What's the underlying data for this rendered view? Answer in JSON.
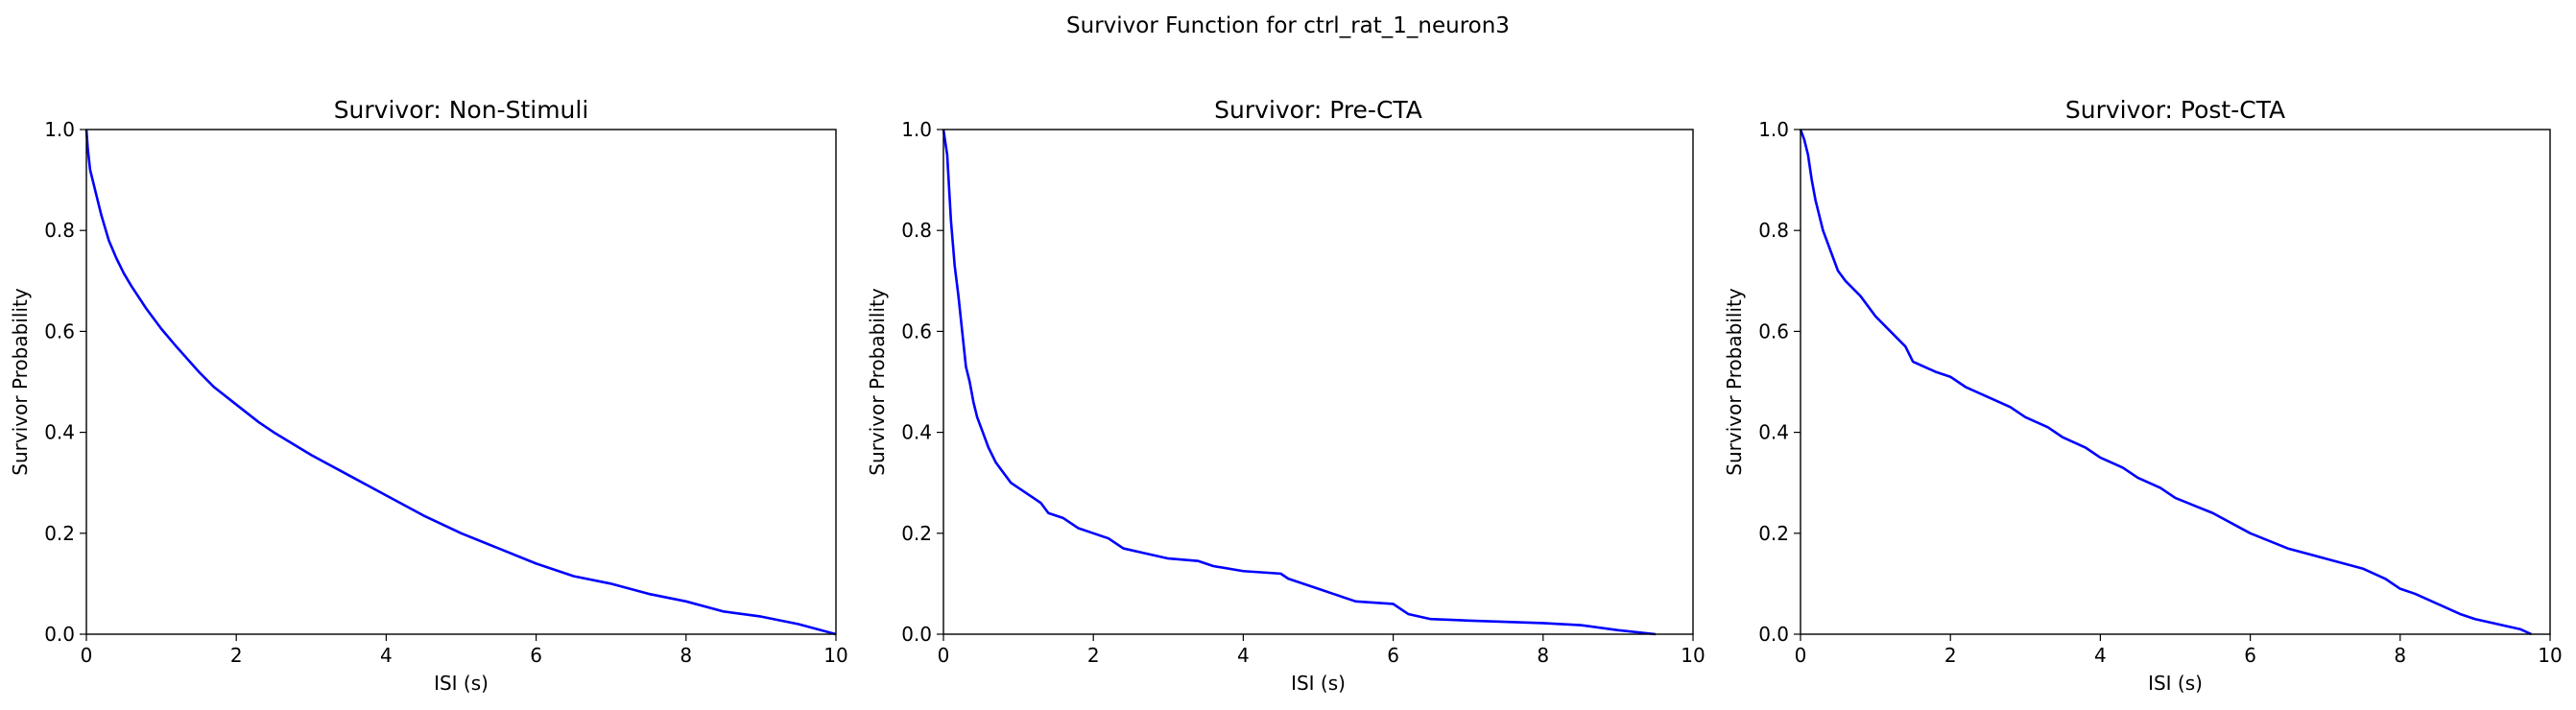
{
  "figure": {
    "suptitle": "Survivor Function for ctrl_rat_1_neuron3",
    "line_color": "#0000ff"
  },
  "chart_data": [
    {
      "type": "line",
      "title": "Survivor: Non-Stimuli",
      "xlabel": "ISI (s)",
      "ylabel": "Survivor Probability",
      "xlim": [
        0,
        10
      ],
      "ylim": [
        0,
        1
      ],
      "xticks": [
        0,
        2,
        4,
        6,
        8,
        10
      ],
      "yticks": [
        0.0,
        0.2,
        0.4,
        0.6,
        0.8,
        1.0
      ],
      "grid": false,
      "series": [
        {
          "x": [
            0,
            0.02,
            0.05,
            0.1,
            0.15,
            0.2,
            0.3,
            0.4,
            0.5,
            0.6,
            0.8,
            1.0,
            1.2,
            1.5,
            1.7,
            2.0,
            2.3,
            2.5,
            3.0,
            3.5,
            4.0,
            4.5,
            5.0,
            5.5,
            6.0,
            6.5,
            7.0,
            7.5,
            8.0,
            8.5,
            9.0,
            9.5,
            10.0
          ],
          "y": [
            1.0,
            0.96,
            0.92,
            0.89,
            0.86,
            0.83,
            0.78,
            0.745,
            0.715,
            0.69,
            0.645,
            0.605,
            0.57,
            0.52,
            0.49,
            0.455,
            0.42,
            0.4,
            0.355,
            0.315,
            0.275,
            0.235,
            0.2,
            0.17,
            0.14,
            0.115,
            0.1,
            0.08,
            0.065,
            0.045,
            0.035,
            0.02,
            0.0
          ]
        }
      ]
    },
    {
      "type": "line",
      "title": "Survivor: Pre-CTA",
      "xlabel": "ISI (s)",
      "ylabel": "Survivor Probability",
      "xlim": [
        0,
        10
      ],
      "ylim": [
        0,
        1
      ],
      "xticks": [
        0,
        2,
        4,
        6,
        8,
        10
      ],
      "yticks": [
        0.0,
        0.2,
        0.4,
        0.6,
        0.8,
        1.0
      ],
      "grid": false,
      "series": [
        {
          "x": [
            0,
            0.05,
            0.1,
            0.15,
            0.2,
            0.25,
            0.3,
            0.35,
            0.4,
            0.45,
            0.5,
            0.55,
            0.6,
            0.7,
            0.8,
            0.9,
            1.0,
            1.2,
            1.3,
            1.4,
            1.6,
            1.8,
            2.0,
            2.2,
            2.4,
            2.7,
            3.0,
            3.4,
            3.6,
            4.0,
            4.5,
            4.6,
            5.0,
            5.2,
            5.5,
            6.0,
            6.2,
            6.5,
            7.0,
            8.0,
            8.5,
            9.0,
            9.5
          ],
          "y": [
            1.0,
            0.95,
            0.82,
            0.73,
            0.67,
            0.6,
            0.53,
            0.5,
            0.46,
            0.43,
            0.41,
            0.39,
            0.37,
            0.34,
            0.32,
            0.3,
            0.29,
            0.27,
            0.26,
            0.24,
            0.23,
            0.21,
            0.2,
            0.19,
            0.17,
            0.16,
            0.15,
            0.145,
            0.135,
            0.125,
            0.12,
            0.11,
            0.09,
            0.08,
            0.065,
            0.06,
            0.04,
            0.03,
            0.027,
            0.022,
            0.018,
            0.008,
            0.0
          ]
        }
      ]
    },
    {
      "type": "line",
      "title": "Survivor: Post-CTA",
      "xlabel": "ISI (s)",
      "ylabel": "Survivor Probability",
      "xlim": [
        0,
        10
      ],
      "ylim": [
        0,
        1
      ],
      "xticks": [
        0,
        2,
        4,
        6,
        8,
        10
      ],
      "yticks": [
        0.0,
        0.2,
        0.4,
        0.6,
        0.8,
        1.0
      ],
      "grid": false,
      "series": [
        {
          "x": [
            0,
            0.05,
            0.1,
            0.15,
            0.2,
            0.3,
            0.4,
            0.5,
            0.6,
            0.8,
            1.0,
            1.2,
            1.4,
            1.5,
            1.8,
            2.0,
            2.2,
            2.5,
            2.8,
            3.0,
            3.3,
            3.5,
            3.8,
            4.0,
            4.3,
            4.5,
            4.8,
            5.0,
            5.5,
            6.0,
            6.5,
            7.0,
            7.5,
            7.8,
            8.0,
            8.2,
            8.5,
            8.8,
            9.0,
            9.3,
            9.6,
            9.75
          ],
          "y": [
            1.0,
            0.98,
            0.95,
            0.9,
            0.86,
            0.8,
            0.76,
            0.72,
            0.7,
            0.67,
            0.63,
            0.6,
            0.57,
            0.54,
            0.52,
            0.51,
            0.49,
            0.47,
            0.45,
            0.43,
            0.41,
            0.39,
            0.37,
            0.35,
            0.33,
            0.31,
            0.29,
            0.27,
            0.24,
            0.2,
            0.17,
            0.15,
            0.13,
            0.11,
            0.09,
            0.08,
            0.06,
            0.04,
            0.03,
            0.02,
            0.01,
            0.0
          ]
        }
      ]
    }
  ]
}
